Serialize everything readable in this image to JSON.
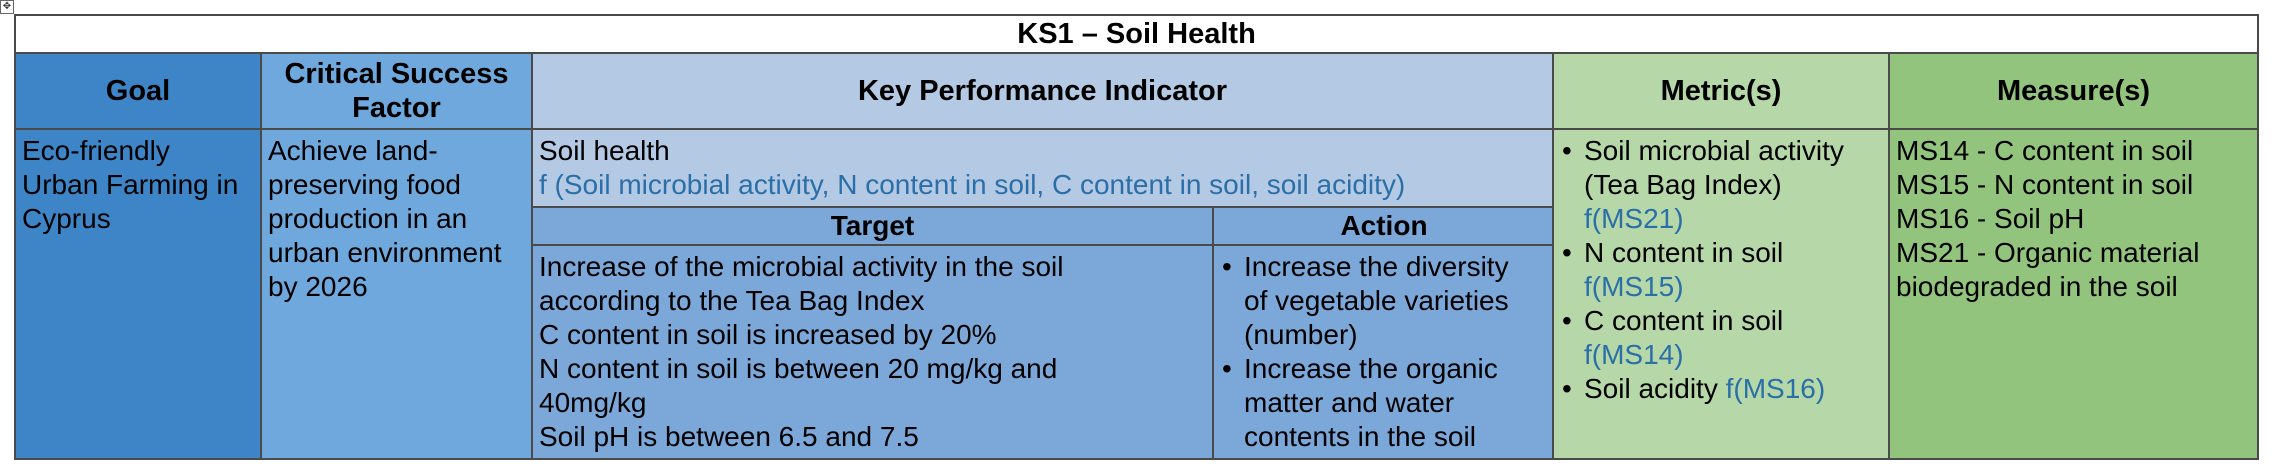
{
  "table": {
    "title": "KS1 – Soil Health",
    "headers": {
      "goal": "Goal",
      "csf_line1": "Critical Success",
      "csf_line2": "Factor",
      "kpi": "Key Performance Indicator",
      "metrics": "Metric(s)",
      "measures": "Measure(s)"
    },
    "goal_lines": [
      "Eco-friendly",
      "Urban Farming in",
      "Cyprus"
    ],
    "csf_lines": [
      "Achieve land-",
      "preserving food",
      "production in an",
      "urban environment",
      "by 2026"
    ],
    "kpi": {
      "name": "Soil health",
      "formula": "f (Soil microbial activity, N content in soil, C content in soil, soil acidity)",
      "target_header": "Target",
      "action_header": "Action",
      "target_lines": [
        "Increase of the microbial activity in the soil",
        "according to the Tea Bag Index",
        "C content in soil is increased by 20%",
        "N content in soil is between 20 mg/kg and",
        "40mg/kg",
        "Soil pH is between 6.5 and 7.5"
      ],
      "actions": [
        {
          "line1": "Increase the diversity",
          "line2": "of vegetable varieties",
          "line3": "(number)"
        },
        {
          "line1": "Increase the organic",
          "line2": "matter and water",
          "line3": "contents in the soil"
        }
      ]
    },
    "metrics": [
      {
        "line1": "Soil microbial activity",
        "line2": "(Tea Bag Index)",
        "fn": "f(MS21)"
      },
      {
        "line1": "N content in soil",
        "line2": "",
        "fn": "f(MS15)"
      },
      {
        "line1": "C content in soil",
        "line2": "",
        "fn": "f(MS14)"
      },
      {
        "line1": "Soil acidity",
        "line2": "",
        "fn": "f(MS16)"
      }
    ],
    "measures": [
      "MS14 - C content in soil",
      "MS15 - N content in soil",
      "MS16 - Soil pH",
      "MS21 - Organic material",
      "biodegraded in the soil"
    ]
  },
  "colors": {
    "goal": "#3d85c6",
    "csf": "#6fa8dc",
    "kpi": "#b4c9e3",
    "target_action": "#7ba7d9",
    "metrics": "#b6d7a8",
    "measures": "#93c47d",
    "formula_text": "#2a6fa8"
  }
}
